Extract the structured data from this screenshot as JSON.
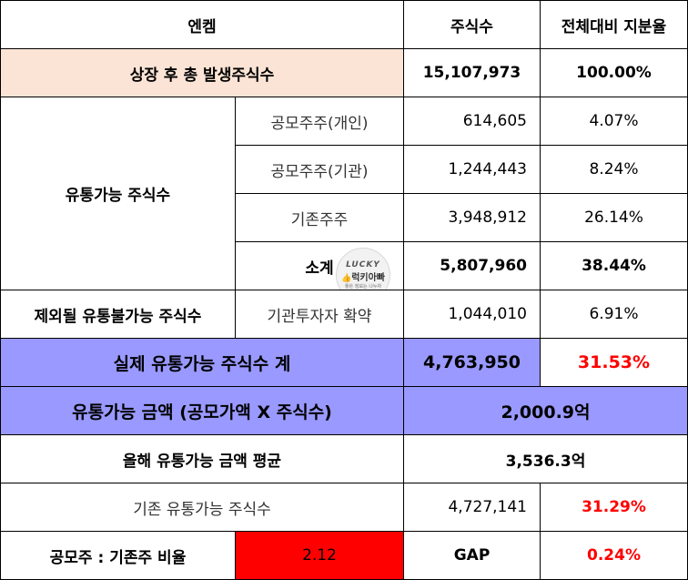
{
  "header": {
    "company": "엔켐",
    "col_shares": "주식수",
    "col_ratio": "전체대비 지분율"
  },
  "total_row": {
    "label": "상장 후 총 발생주식수",
    "shares": "15,107,973",
    "ratio": "100.00%"
  },
  "tradable": {
    "label": "유통가능 주식수",
    "rows": [
      {
        "label": "공모주주(개인)",
        "shares": "614,605",
        "ratio": "4.07%"
      },
      {
        "label": "공모주주(기관)",
        "shares": "1,244,443",
        "ratio": "8.24%"
      },
      {
        "label": "기존주주",
        "shares": "3,948,912",
        "ratio": "26.14%"
      }
    ],
    "subtotal": {
      "label": "소계",
      "shares": "5,807,960",
      "ratio": "38.44%"
    }
  },
  "excluded": {
    "label": "제외될 유통불가능 주식수",
    "sublabel": "기관투자자 확약",
    "shares": "1,044,010",
    "ratio": "6.91%"
  },
  "actual": {
    "label": "실제 유통가능 주식수 계",
    "shares": "4,763,950",
    "ratio": "31.53%"
  },
  "amount": {
    "label": "유통가능 금액 (공모가액 X 주식수)",
    "value": "2,000.9억"
  },
  "avg": {
    "label": "올해 유통가능 금액 평균",
    "value": "3,536.3억"
  },
  "existing": {
    "label": "기존 유통가능 주식수",
    "shares": "4,727,141",
    "ratio": "31.29%"
  },
  "ratio_row": {
    "label": "공모주 : 기존주 비율",
    "value": "2.12",
    "gap_label": "GAP",
    "gap_value": "0.24%"
  },
  "watermark": {
    "line1": "LUCKY",
    "line2": "럭키아빠",
    "line3": "좋은 정보는 나누자"
  },
  "colors": {
    "peach": "#fbe4d5",
    "blue": "#9999ff",
    "red": "#ff0000"
  }
}
